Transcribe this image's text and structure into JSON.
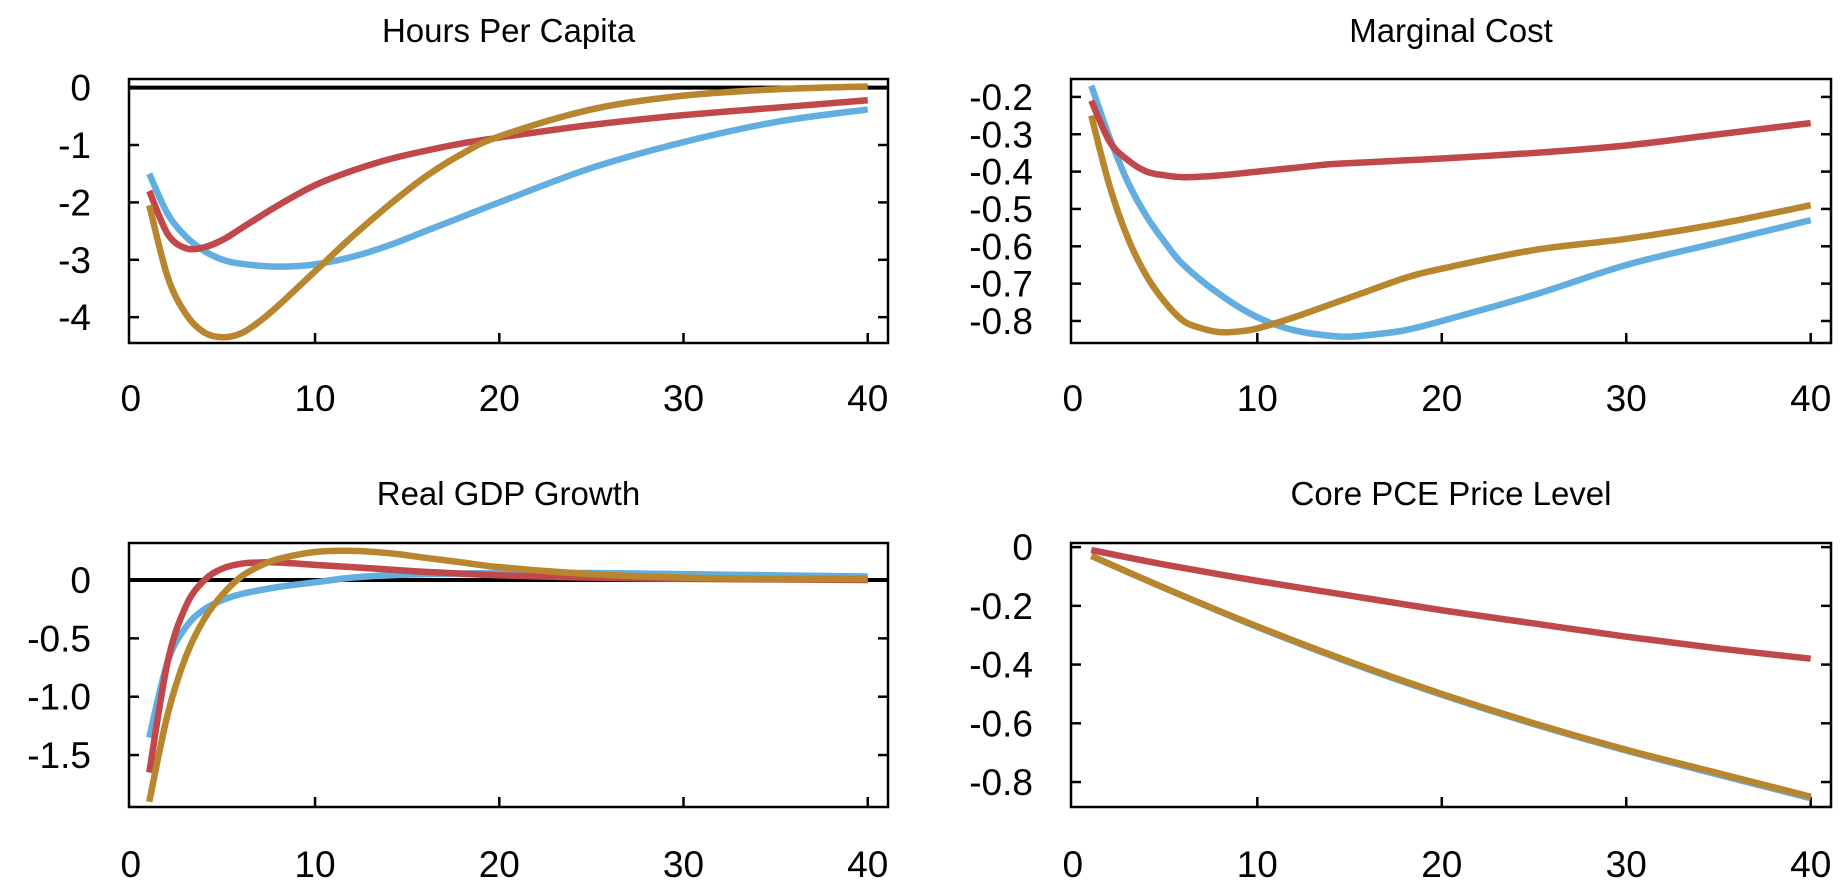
{
  "colors": {
    "blue": "#62aee0",
    "red": "#c0484a",
    "gold": "#b8862e",
    "zero_line": "#000000"
  },
  "chart_data": [
    {
      "type": "line",
      "title": "Hours Per Capita",
      "xlim": [
        -0.1,
        41.1
      ],
      "ylim": [
        -4.45,
        0.15
      ],
      "xticks": [
        0,
        10,
        20,
        30,
        40
      ],
      "xtick_labels": [
        "0",
        "10",
        "20",
        "30",
        "40"
      ],
      "yticks": [
        0,
        -1,
        -2,
        -3,
        -4
      ],
      "ytick_labels": [
        "0",
        "-1",
        "-2",
        "-3",
        "-4"
      ],
      "zero_line": true,
      "series": [
        {
          "color": "blue",
          "x": [
            1,
            2,
            3,
            4,
            5,
            6,
            8,
            10,
            12,
            14,
            16,
            18,
            20,
            25,
            30,
            35,
            40
          ],
          "y": [
            -1.5,
            -2.2,
            -2.6,
            -2.85,
            -3.0,
            -3.07,
            -3.12,
            -3.08,
            -2.95,
            -2.75,
            -2.5,
            -2.25,
            -2.0,
            -1.4,
            -0.95,
            -0.6,
            -0.38
          ]
        },
        {
          "color": "red",
          "x": [
            1,
            2,
            3,
            4,
            5,
            6,
            8,
            10,
            12,
            14,
            16,
            18,
            20,
            25,
            30,
            35,
            40
          ],
          "y": [
            -1.8,
            -2.55,
            -2.8,
            -2.78,
            -2.65,
            -2.45,
            -2.05,
            -1.7,
            -1.45,
            -1.25,
            -1.1,
            -0.97,
            -0.87,
            -0.65,
            -0.48,
            -0.35,
            -0.22
          ]
        },
        {
          "color": "gold",
          "x": [
            1,
            2,
            3,
            4,
            5,
            6,
            7,
            8,
            10,
            12,
            14,
            16,
            18,
            20,
            25,
            30,
            35,
            40
          ],
          "y": [
            -2.05,
            -3.3,
            -3.95,
            -4.27,
            -4.35,
            -4.28,
            -4.07,
            -3.8,
            -3.2,
            -2.6,
            -2.05,
            -1.55,
            -1.15,
            -0.85,
            -0.38,
            -0.14,
            -0.03,
            0.02
          ]
        }
      ]
    },
    {
      "type": "line",
      "title": "Marginal Cost",
      "xlim": [
        -0.1,
        41.1
      ],
      "ylim": [
        -0.859,
        -0.152
      ],
      "xticks": [
        0,
        10,
        20,
        30,
        40
      ],
      "xtick_labels": [
        "0",
        "10",
        "20",
        "30",
        "40"
      ],
      "yticks": [
        -0.2,
        -0.3,
        -0.4,
        -0.5,
        -0.6,
        -0.7,
        -0.8
      ],
      "ytick_labels": [
        "-0.2",
        "-0.3",
        "-0.4",
        "-0.5",
        "-0.6",
        "-0.7",
        "-0.8"
      ],
      "zero_line": false,
      "series": [
        {
          "color": "blue",
          "x": [
            1,
            2,
            3,
            4,
            5,
            6,
            8,
            10,
            12,
            14,
            15,
            16,
            18,
            20,
            25,
            30,
            35,
            40
          ],
          "y": [
            -0.17,
            -0.31,
            -0.43,
            -0.52,
            -0.59,
            -0.65,
            -0.73,
            -0.79,
            -0.825,
            -0.84,
            -0.842,
            -0.838,
            -0.825,
            -0.8,
            -0.73,
            -0.65,
            -0.59,
            -0.53
          ]
        },
        {
          "color": "red",
          "x": [
            1,
            2,
            3,
            4,
            5,
            6,
            8,
            10,
            12,
            14,
            16,
            18,
            20,
            25,
            30,
            35,
            40
          ],
          "y": [
            -0.21,
            -0.32,
            -0.37,
            -0.4,
            -0.41,
            -0.415,
            -0.41,
            -0.4,
            -0.39,
            -0.38,
            -0.375,
            -0.37,
            -0.365,
            -0.35,
            -0.33,
            -0.3,
            -0.27
          ]
        },
        {
          "color": "gold",
          "x": [
            1,
            2,
            3,
            4,
            5,
            6,
            7,
            8,
            9,
            10,
            12,
            14,
            16,
            18,
            20,
            25,
            30,
            35,
            40
          ],
          "y": [
            -0.25,
            -0.44,
            -0.58,
            -0.68,
            -0.75,
            -0.8,
            -0.82,
            -0.83,
            -0.828,
            -0.82,
            -0.79,
            -0.755,
            -0.72,
            -0.685,
            -0.66,
            -0.61,
            -0.58,
            -0.54,
            -0.49
          ]
        }
      ]
    },
    {
      "type": "line",
      "title": "Real GDP Growth",
      "xlim": [
        -0.1,
        41.1
      ],
      "ylim": [
        -1.945,
        0.317
      ],
      "xticks": [
        0,
        10,
        20,
        30,
        40
      ],
      "xtick_labels": [
        "0",
        "10",
        "20",
        "30",
        "40"
      ],
      "yticks": [
        0,
        -0.5,
        -1.0,
        -1.5
      ],
      "ytick_labels": [
        "0",
        "-0.5",
        "-1.0",
        "-1.5"
      ],
      "zero_line": true,
      "series": [
        {
          "color": "blue",
          "x": [
            1,
            2,
            3,
            4,
            5,
            6,
            8,
            10,
            12,
            14,
            16,
            20,
            25,
            30,
            35,
            40
          ],
          "y": [
            -1.35,
            -0.7,
            -0.4,
            -0.25,
            -0.17,
            -0.12,
            -0.06,
            -0.02,
            0.02,
            0.04,
            0.05,
            0.06,
            0.06,
            0.05,
            0.04,
            0.03
          ]
        },
        {
          "color": "red",
          "x": [
            1,
            2,
            3,
            4,
            5,
            6,
            7,
            8,
            10,
            12,
            14,
            16,
            20,
            25,
            30,
            40
          ],
          "y": [
            -1.65,
            -0.7,
            -0.22,
            0.0,
            0.1,
            0.14,
            0.15,
            0.15,
            0.13,
            0.11,
            0.09,
            0.07,
            0.04,
            0.02,
            0.01,
            0.0
          ]
        },
        {
          "color": "gold",
          "x": [
            1,
            2,
            3,
            4,
            5,
            6,
            7,
            8,
            10,
            12,
            14,
            16,
            18,
            20,
            25,
            30,
            35,
            40
          ],
          "y": [
            -1.9,
            -1.15,
            -0.65,
            -0.33,
            -0.12,
            0.03,
            0.12,
            0.18,
            0.24,
            0.25,
            0.23,
            0.19,
            0.15,
            0.11,
            0.05,
            0.02,
            0.01,
            0.01
          ]
        }
      ]
    },
    {
      "type": "line",
      "title": "Core PCE Price Level",
      "xlim": [
        -0.1,
        41.1
      ],
      "ylim": [
        -0.885,
        0.014
      ],
      "xticks": [
        0,
        10,
        20,
        30,
        40
      ],
      "xtick_labels": [
        "0",
        "10",
        "20",
        "30",
        "40"
      ],
      "yticks": [
        0,
        -0.2,
        -0.4,
        -0.6,
        -0.8
      ],
      "ytick_labels": [
        "0",
        "-0.2",
        "-0.4",
        "-0.6",
        "-0.8"
      ],
      "zero_line": false,
      "series": [
        {
          "color": "blue",
          "x": [
            1,
            5,
            10,
            15,
            20,
            25,
            30,
            35,
            40
          ],
          "y": [
            -0.03,
            -0.14,
            -0.272,
            -0.393,
            -0.503,
            -0.603,
            -0.693,
            -0.775,
            -0.855
          ]
        },
        {
          "color": "red",
          "x": [
            1,
            5,
            10,
            15,
            20,
            25,
            30,
            35,
            40
          ],
          "y": [
            -0.01,
            -0.06,
            -0.115,
            -0.165,
            -0.215,
            -0.26,
            -0.305,
            -0.345,
            -0.38
          ]
        },
        {
          "color": "gold",
          "x": [
            1,
            5,
            10,
            15,
            20,
            25,
            30,
            35,
            40
          ],
          "y": [
            -0.03,
            -0.14,
            -0.27,
            -0.39,
            -0.5,
            -0.6,
            -0.69,
            -0.77,
            -0.85
          ]
        }
      ]
    }
  ]
}
